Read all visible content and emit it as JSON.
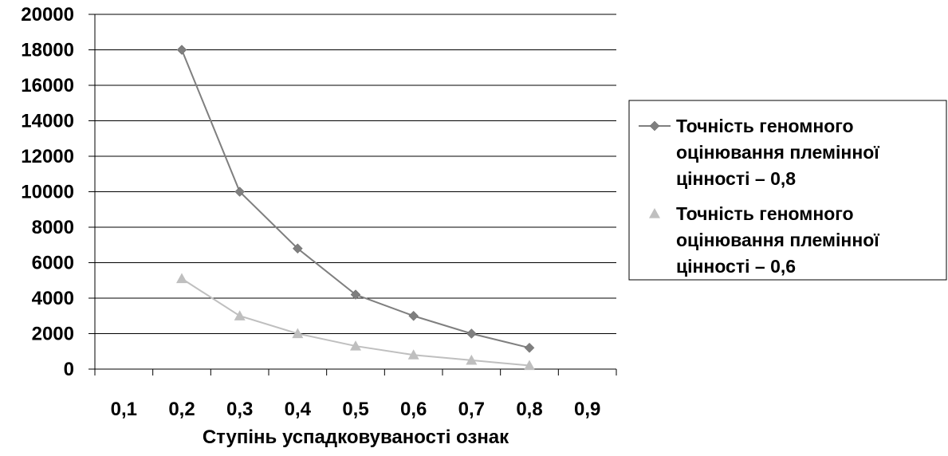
{
  "chart_data": {
    "type": "line",
    "title": "",
    "xlabel": "Ступінь успадковуваності ознак",
    "ylabel": "",
    "categories": [
      "0,1",
      "0,2",
      "0,3",
      "0,4",
      "0,5",
      "0,6",
      "0,7",
      "0,8",
      "0,9"
    ],
    "ylim": [
      0,
      20000
    ],
    "yticks": [
      "0",
      "2000",
      "4000",
      "6000",
      "8000",
      "10000",
      "12000",
      "14000",
      "16000",
      "18000",
      "20000"
    ],
    "grid": "horizontal",
    "legend_position": "right",
    "series": [
      {
        "name": "Точність геномного оцінювання племінної цінності – 0,8",
        "legend_lines": [
          "Точність геномного",
          "оцінювання племінної",
          "цінності – 0,8"
        ],
        "marker": "diamond",
        "color": "#7f7f7f",
        "values": [
          null,
          18000,
          10000,
          6800,
          4200,
          3000,
          2000,
          1200,
          null
        ]
      },
      {
        "name": "Точність геномного оцінювання племінної цінності – 0,6",
        "legend_lines": [
          "Точність геномного",
          "оцінювання племінної",
          "цінності – 0,6"
        ],
        "marker": "triangle",
        "color": "#bfbfbf",
        "values": [
          null,
          5100,
          3000,
          2000,
          1300,
          800,
          500,
          200,
          null
        ]
      }
    ]
  }
}
